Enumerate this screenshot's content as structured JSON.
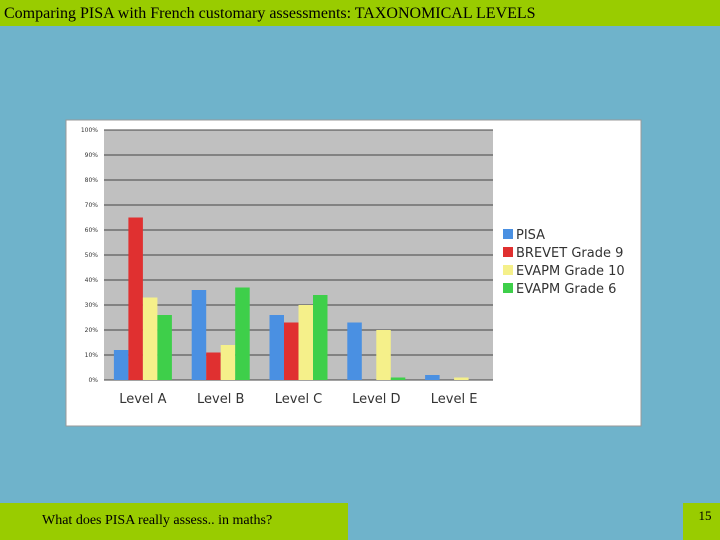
{
  "slide": {
    "title": "Comparing PISA with French customary assessments: TAXONOMICAL LEVELS",
    "footer": "What does PISA really assess.. in maths?",
    "page_number": "15"
  },
  "chart_data": {
    "type": "bar",
    "categories": [
      "Level A",
      "Level B",
      "Level C",
      "Level D",
      "Level E"
    ],
    "series": [
      {
        "name": "PISA",
        "color": "#4a90e2",
        "values": [
          12,
          36,
          26,
          23,
          2
        ]
      },
      {
        "name": "BREVET Grade 9",
        "color": "#e03030",
        "values": [
          65,
          11,
          23,
          0,
          0
        ]
      },
      {
        "name": "EVAPM Grade 10",
        "color": "#f5f08a",
        "values": [
          33,
          14,
          30,
          20,
          1
        ]
      },
      {
        "name": "EVAPM Grade 6",
        "color": "#3ecf4a",
        "values": [
          26,
          37,
          34,
          1,
          0
        ]
      }
    ],
    "ylim": [
      0,
      100
    ],
    "yticks": [
      {
        "value": 0,
        "label": "0%"
      },
      {
        "value": 10,
        "label": "10%"
      },
      {
        "value": 20,
        "label": "20%"
      },
      {
        "value": 30,
        "label": "30%"
      },
      {
        "value": 40,
        "label": "40%"
      },
      {
        "value": 50,
        "label": "50%"
      },
      {
        "value": 60,
        "label": "60%"
      },
      {
        "value": 70,
        "label": "70%"
      },
      {
        "value": 80,
        "label": "80%"
      },
      {
        "value": 90,
        "label": "90%"
      },
      {
        "value": 100,
        "label": "100%"
      }
    ],
    "grid": true,
    "legend": "right"
  }
}
